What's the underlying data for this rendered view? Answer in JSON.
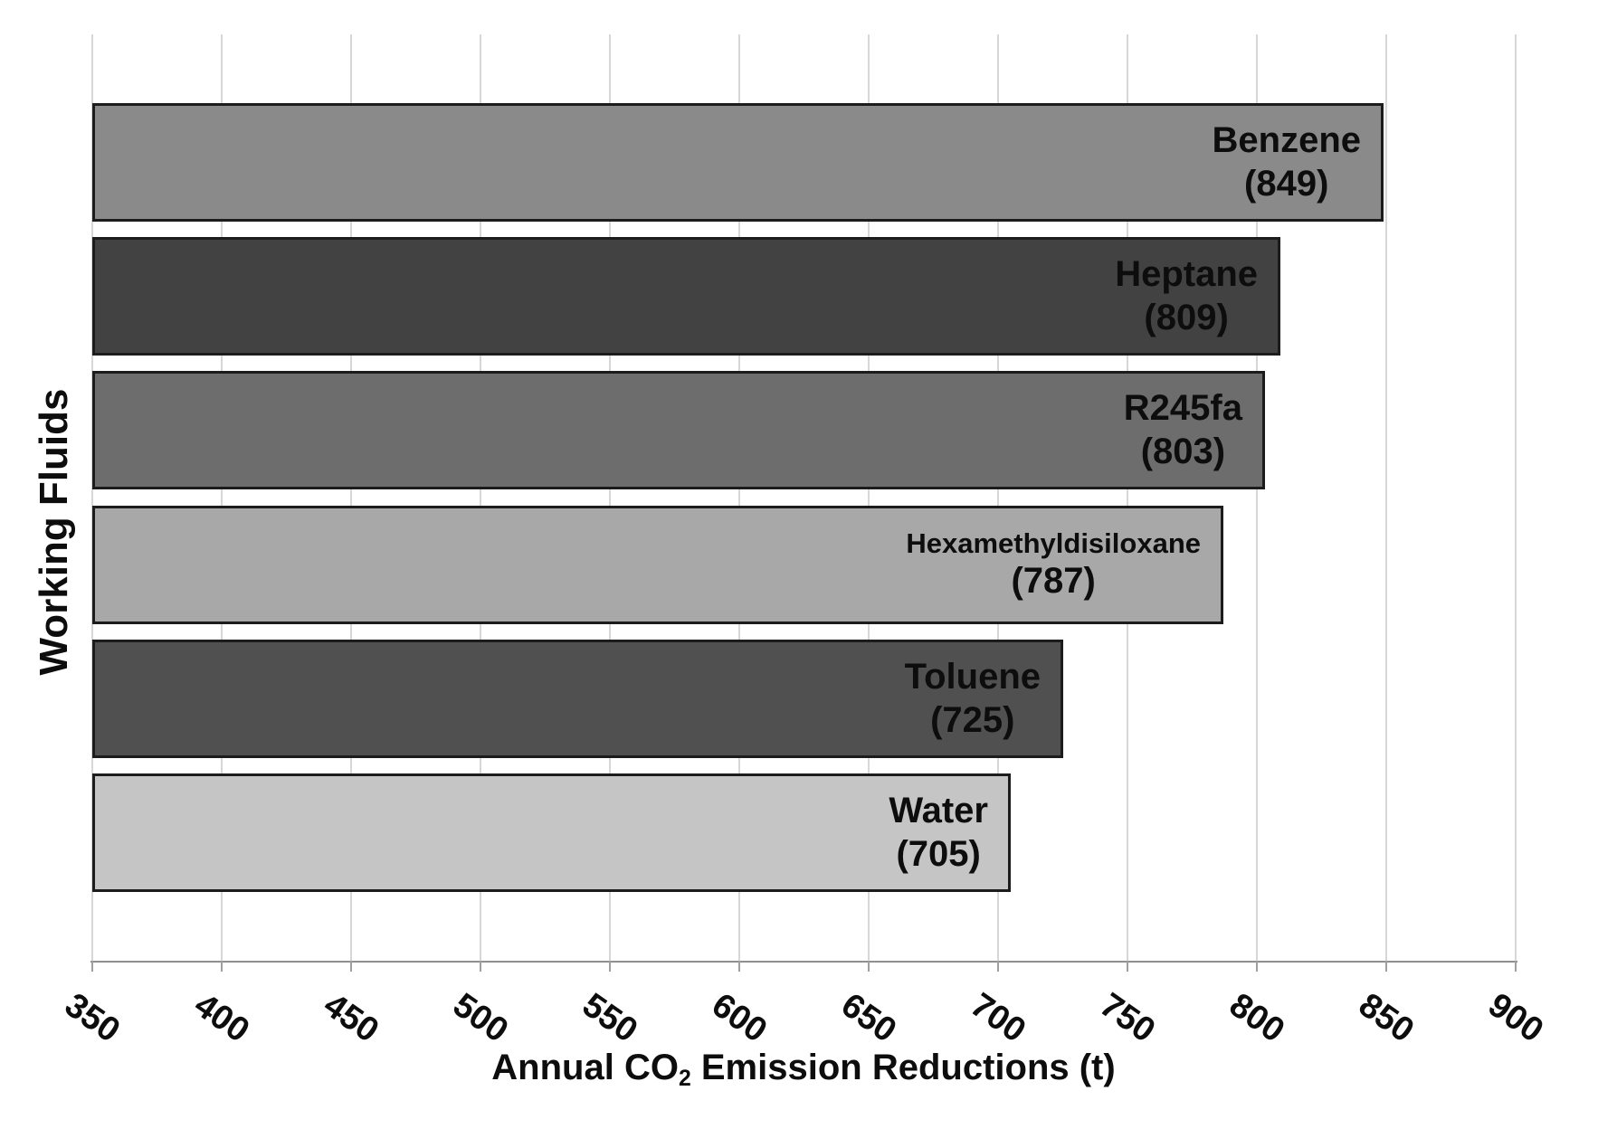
{
  "chart_data": {
    "type": "bar",
    "orientation": "horizontal",
    "title": "",
    "ylabel": "Working Fluids",
    "xlabel_parts": {
      "pre": "Annual CO",
      "sub": "2",
      "post": " Emission Reductions (t)"
    },
    "xlim": [
      350,
      900
    ],
    "xticks": [
      350,
      400,
      450,
      500,
      550,
      600,
      650,
      700,
      750,
      800,
      850,
      900
    ],
    "grid": "vertical",
    "legend_position": "none",
    "bars": [
      {
        "category": "Benzene",
        "value": 849,
        "label": "Benzene",
        "value_label": "(849)",
        "color": "#8a8a8a",
        "small_label": false
      },
      {
        "category": "Heptane",
        "value": 809,
        "label": "Heptane",
        "value_label": "(809)",
        "color": "#424242",
        "small_label": false
      },
      {
        "category": "R245fa",
        "value": 803,
        "label": "R245fa",
        "value_label": "(803)",
        "color": "#6d6d6d",
        "small_label": false
      },
      {
        "category": "Hexamethyldisiloxane",
        "value": 787,
        "label": "Hexamethyldisiloxane",
        "value_label": "(787)",
        "color": "#a8a8a8",
        "small_label": true
      },
      {
        "category": "Toluene",
        "value": 725,
        "label": "Toluene",
        "value_label": "(725)",
        "color": "#505050",
        "small_label": false
      },
      {
        "category": "Water",
        "value": 705,
        "label": "Water",
        "value_label": "(705)",
        "color": "#c5c5c5",
        "small_label": false
      }
    ],
    "colors": {
      "bar_border": "#1c1c1c",
      "gridline": "#d7d7d7",
      "axis_line": "#8f8f8f",
      "tick": "#9f9f9f",
      "text": "#0d0d0d",
      "background": "#ffffff"
    }
  }
}
